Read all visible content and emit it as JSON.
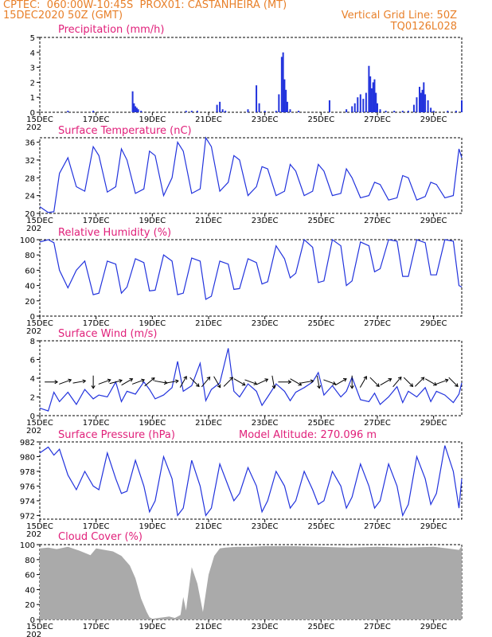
{
  "header": {
    "line1_left": "CPTEC:  060:00W-10:45S  PROX01: CASTANHEIRA (MT)",
    "line2_left": "15DEC2020 50Z (GMT)",
    "line2_right": "Vertical Grid Line: 50Z",
    "line3_right": "TQ0126L028"
  },
  "x_tick_labels": [
    "15DEC",
    "17DEC",
    "19DEC",
    "21DEC",
    "23DEC",
    "25DEC",
    "27DEC",
    "29DEC"
  ],
  "x_tick_days": [
    15,
    17,
    19,
    21,
    23,
    25,
    27,
    29
  ],
  "x_range_days": [
    15,
    30
  ],
  "year_fragment": "202",
  "colors": {
    "line": "#2233dd",
    "title": "#e0207a",
    "header": "#e8802a",
    "cloud": "#aaaaaa"
  },
  "chart_data": [
    {
      "id": "precip",
      "type": "bar",
      "title": "Precipitation (mm/h)",
      "ylim": [
        0,
        5
      ],
      "yticks": [
        0,
        1,
        2,
        3,
        4,
        5
      ],
      "day_range": [
        15,
        30
      ],
      "x": [
        16.0,
        16.9,
        18.3,
        18.35,
        18.4,
        18.45,
        18.5,
        18.6,
        20.2,
        20.4,
        20.6,
        21.3,
        21.4,
        21.5,
        21.6,
        22.4,
        22.7,
        22.8,
        23.0,
        23.4,
        23.5,
        23.6,
        23.65,
        23.7,
        23.75,
        23.8,
        23.9,
        24.2,
        25.3,
        25.9,
        26.1,
        26.2,
        26.3,
        26.4,
        26.5,
        26.6,
        26.7,
        26.75,
        26.8,
        26.85,
        26.9,
        26.95,
        27.0,
        27.1,
        27.3,
        27.6,
        27.9,
        28.1,
        28.3,
        28.4,
        28.5,
        28.55,
        28.6,
        28.65,
        28.7,
        28.8,
        28.9,
        29.0,
        29.5,
        29.8,
        30.0
      ],
      "values": [
        0.1,
        0.1,
        1.4,
        0.6,
        0.4,
        0.3,
        0.2,
        0.1,
        0.1,
        0.1,
        0.1,
        0.5,
        0.7,
        0.2,
        0.1,
        0.2,
        1.8,
        0.6,
        0.1,
        0.1,
        1.2,
        3.7,
        4.0,
        2.2,
        1.5,
        0.7,
        0.2,
        0.1,
        0.8,
        0.2,
        0.4,
        0.6,
        1.0,
        1.2,
        0.9,
        1.3,
        3.1,
        2.4,
        1.6,
        2.0,
        2.2,
        1.3,
        0.6,
        0.2,
        0.1,
        0.1,
        0.1,
        0.1,
        0.5,
        1.0,
        1.7,
        1.3,
        1.5,
        2.0,
        1.2,
        0.8,
        0.3,
        0.1,
        0.1,
        0.1,
        0.8
      ]
    },
    {
      "id": "temp",
      "type": "line",
      "title": "Surface Temperature (nC)",
      "ylim": [
        20,
        37
      ],
      "yticks": [
        20,
        24,
        28,
        32,
        36
      ],
      "day_range": [
        15,
        30
      ],
      "x": [
        15.0,
        15.3,
        15.5,
        15.7,
        16.0,
        16.3,
        16.6,
        16.9,
        17.1,
        17.4,
        17.7,
        17.9,
        18.1,
        18.4,
        18.7,
        18.9,
        19.1,
        19.4,
        19.7,
        19.9,
        20.1,
        20.4,
        20.7,
        20.9,
        21.1,
        21.4,
        21.7,
        21.9,
        22.1,
        22.4,
        22.7,
        22.9,
        23.1,
        23.4,
        23.7,
        23.9,
        24.1,
        24.4,
        24.7,
        24.9,
        25.1,
        25.4,
        25.7,
        25.9,
        26.1,
        26.4,
        26.7,
        26.9,
        27.1,
        27.4,
        27.7,
        27.9,
        28.1,
        28.4,
        28.7,
        28.9,
        29.1,
        29.4,
        29.7,
        29.9,
        30.0
      ],
      "values": [
        21.5,
        20.2,
        20.4,
        29.0,
        32.5,
        26.0,
        25.0,
        35.0,
        33.0,
        24.8,
        26.0,
        34.5,
        32.0,
        24.5,
        25.5,
        34.0,
        33.0,
        24.0,
        28.0,
        36.0,
        34.0,
        24.5,
        25.5,
        37.0,
        35.0,
        25.0,
        27.0,
        33.0,
        32.0,
        24.0,
        26.0,
        30.5,
        30.0,
        24.0,
        25.0,
        31.0,
        29.5,
        24.0,
        25.0,
        31.0,
        29.5,
        24.0,
        24.5,
        30.0,
        28.0,
        23.5,
        24.0,
        27.0,
        26.5,
        23.0,
        23.5,
        28.5,
        28.0,
        23.0,
        23.8,
        27.0,
        26.5,
        23.5,
        24.0,
        34.5,
        32.5
      ]
    },
    {
      "id": "rh",
      "type": "line",
      "title": "Relative Humidity (%)",
      "ylim": [
        0,
        100
      ],
      "yticks": [
        0,
        20,
        40,
        60,
        80,
        100
      ],
      "day_range": [
        15,
        30
      ],
      "x": [
        15.0,
        15.3,
        15.5,
        15.7,
        16.0,
        16.3,
        16.6,
        16.9,
        17.1,
        17.4,
        17.7,
        17.9,
        18.1,
        18.4,
        18.7,
        18.9,
        19.1,
        19.4,
        19.7,
        19.9,
        20.1,
        20.4,
        20.7,
        20.9,
        21.1,
        21.4,
        21.7,
        21.9,
        22.1,
        22.4,
        22.7,
        22.9,
        23.1,
        23.4,
        23.7,
        23.9,
        24.1,
        24.4,
        24.7,
        24.9,
        25.1,
        25.4,
        25.7,
        25.9,
        26.1,
        26.4,
        26.7,
        26.9,
        27.1,
        27.4,
        27.7,
        27.9,
        28.1,
        28.4,
        28.7,
        28.9,
        29.1,
        29.4,
        29.7,
        29.9,
        30.0
      ],
      "values": [
        97.0,
        100.0,
        96.0,
        60.0,
        37.0,
        60.0,
        72.0,
        28.0,
        30.0,
        72.0,
        68.0,
        30.0,
        38.0,
        75.0,
        70.0,
        33.0,
        34.0,
        80.0,
        72.0,
        28.0,
        30.0,
        76.0,
        72.0,
        22.0,
        26.0,
        72.0,
        68.0,
        35.0,
        36.0,
        75.0,
        70.0,
        42.0,
        45.0,
        92.0,
        75.0,
        50.0,
        56.0,
        100.0,
        90.0,
        44.0,
        46.0,
        100.0,
        92.0,
        40.0,
        46.0,
        97.0,
        92.0,
        58.0,
        62.0,
        100.0,
        98.0,
        52.0,
        52.0,
        100.0,
        96.0,
        54.0,
        54.0,
        100.0,
        98.0,
        40.0,
        38.0
      ]
    },
    {
      "id": "wind",
      "type": "line",
      "title": "Surface Wind (m/s)",
      "ylim": [
        0,
        8
      ],
      "yticks": [
        0,
        2,
        4,
        6,
        8
      ],
      "day_range": [
        15,
        30
      ],
      "x": [
        15.0,
        15.3,
        15.5,
        15.7,
        16.0,
        16.3,
        16.6,
        16.9,
        17.1,
        17.4,
        17.7,
        17.9,
        18.1,
        18.4,
        18.7,
        18.9,
        19.1,
        19.4,
        19.7,
        19.9,
        20.1,
        20.4,
        20.7,
        20.9,
        21.1,
        21.4,
        21.7,
        21.9,
        22.1,
        22.4,
        22.7,
        22.9,
        23.1,
        23.4,
        23.7,
        23.9,
        24.1,
        24.4,
        24.7,
        24.9,
        25.1,
        25.4,
        25.7,
        25.9,
        26.1,
        26.4,
        26.7,
        26.9,
        27.1,
        27.4,
        27.7,
        27.9,
        28.1,
        28.4,
        28.7,
        28.9,
        29.1,
        29.4,
        29.7,
        29.9,
        30.0
      ],
      "values": [
        0.8,
        0.5,
        2.5,
        1.5,
        2.5,
        1.2,
        2.8,
        1.8,
        2.2,
        2.0,
        3.6,
        1.5,
        2.6,
        2.3,
        3.6,
        2.8,
        1.8,
        2.2,
        3.0,
        5.8,
        2.6,
        3.2,
        5.6,
        1.6,
        2.8,
        3.5,
        7.2,
        2.6,
        2.0,
        3.4,
        2.6,
        1.1,
        2.0,
        3.4,
        2.6,
        1.6,
        2.5,
        3.0,
        3.6,
        4.6,
        2.2,
        3.2,
        2.0,
        2.6,
        4.1,
        1.7,
        1.5,
        2.4,
        1.2,
        2.0,
        3.1,
        1.4,
        2.6,
        2.0,
        3.0,
        1.5,
        2.6,
        2.2,
        1.4,
        2.3,
        3.5
      ],
      "arrow_days": [
        15.4,
        15.9,
        16.4,
        16.9,
        17.3,
        17.7,
        18.1,
        18.5,
        18.9,
        19.3,
        19.7,
        20.1,
        20.5,
        20.9,
        21.3,
        21.7,
        22.1,
        22.5,
        22.9,
        23.3,
        23.7,
        24.1,
        24.5,
        24.9,
        25.3,
        25.7,
        26.1,
        26.5,
        26.9,
        27.3,
        27.7,
        28.1,
        28.5,
        28.9,
        29.3,
        29.7
      ],
      "arrow_dirs_deg": [
        0,
        -20,
        -10,
        90,
        -20,
        -15,
        -30,
        -20,
        -40,
        10,
        -10,
        -60,
        45,
        -50,
        60,
        -45,
        30,
        20,
        -25,
        80,
        0,
        30,
        -10,
        80,
        20,
        -30,
        90,
        -60,
        45,
        -30,
        -50,
        45,
        -45,
        30,
        -20,
        45
      ]
    },
    {
      "id": "pressure",
      "type": "line",
      "title": "Surface Pressure (hPa)",
      "annotation": "Model Altitude: 270.096 m",
      "ylim": [
        971.5,
        982
      ],
      "yticks": [
        972,
        974,
        976,
        978,
        980,
        982
      ],
      "day_range": [
        15,
        30
      ],
      "x": [
        15.0,
        15.3,
        15.5,
        15.7,
        16.0,
        16.3,
        16.6,
        16.9,
        17.1,
        17.4,
        17.7,
        17.9,
        18.1,
        18.4,
        18.7,
        18.9,
        19.1,
        19.4,
        19.7,
        19.9,
        20.1,
        20.4,
        20.7,
        20.9,
        21.1,
        21.4,
        21.7,
        21.9,
        22.1,
        22.4,
        22.7,
        22.9,
        23.1,
        23.4,
        23.7,
        23.9,
        24.1,
        24.4,
        24.7,
        24.9,
        25.1,
        25.4,
        25.7,
        25.9,
        26.1,
        26.4,
        26.7,
        26.9,
        27.1,
        27.4,
        27.7,
        27.9,
        28.1,
        28.4,
        28.7,
        28.9,
        29.1,
        29.4,
        29.7,
        29.9,
        30.0
      ],
      "values": [
        980.5,
        981.3,
        980.2,
        981.0,
        977.5,
        975.5,
        978.0,
        976.0,
        975.5,
        980.5,
        977.0,
        975.0,
        975.3,
        979.5,
        976.0,
        972.5,
        974.0,
        980.0,
        977.0,
        972.0,
        973.0,
        979.5,
        976.0,
        972.0,
        973.0,
        979.0,
        976.0,
        974.0,
        975.0,
        978.5,
        976.0,
        972.5,
        974.0,
        978.0,
        976.0,
        973.0,
        974.0,
        978.0,
        975.5,
        973.5,
        974.0,
        978.0,
        976.0,
        973.0,
        974.5,
        979.0,
        976.0,
        973.0,
        974.0,
        979.0,
        976.0,
        972.0,
        973.5,
        980.0,
        977.0,
        973.5,
        975.0,
        981.5,
        978.0,
        973.0,
        977.0
      ]
    },
    {
      "id": "cloud",
      "type": "area",
      "title": "Cloud Cover (%)",
      "ylim": [
        0,
        100
      ],
      "yticks": [
        0,
        20,
        40,
        60,
        80,
        100
      ],
      "day_range": [
        15,
        30
      ],
      "x": [
        15.0,
        15.3,
        15.6,
        16.0,
        16.4,
        16.8,
        17.0,
        17.3,
        17.6,
        17.9,
        18.2,
        18.4,
        18.6,
        18.8,
        18.9,
        19.0,
        19.2,
        19.4,
        19.6,
        19.8,
        20.0,
        20.1,
        20.2,
        20.4,
        20.6,
        20.8,
        21.0,
        21.2,
        21.4,
        21.6,
        22.0,
        22.5,
        23.0,
        24.0,
        25.0,
        26.0,
        27.0,
        28.0,
        29.0,
        29.5,
        29.9,
        30.0
      ],
      "values": [
        95,
        96,
        94,
        97,
        92,
        86,
        95,
        93,
        91,
        85,
        72,
        55,
        28,
        10,
        3,
        1,
        2,
        3,
        4,
        2,
        6,
        30,
        12,
        70,
        48,
        10,
        60,
        85,
        95,
        96,
        97,
        97,
        98,
        98,
        97,
        96,
        97,
        96,
        97,
        95,
        93,
        98
      ]
    }
  ]
}
